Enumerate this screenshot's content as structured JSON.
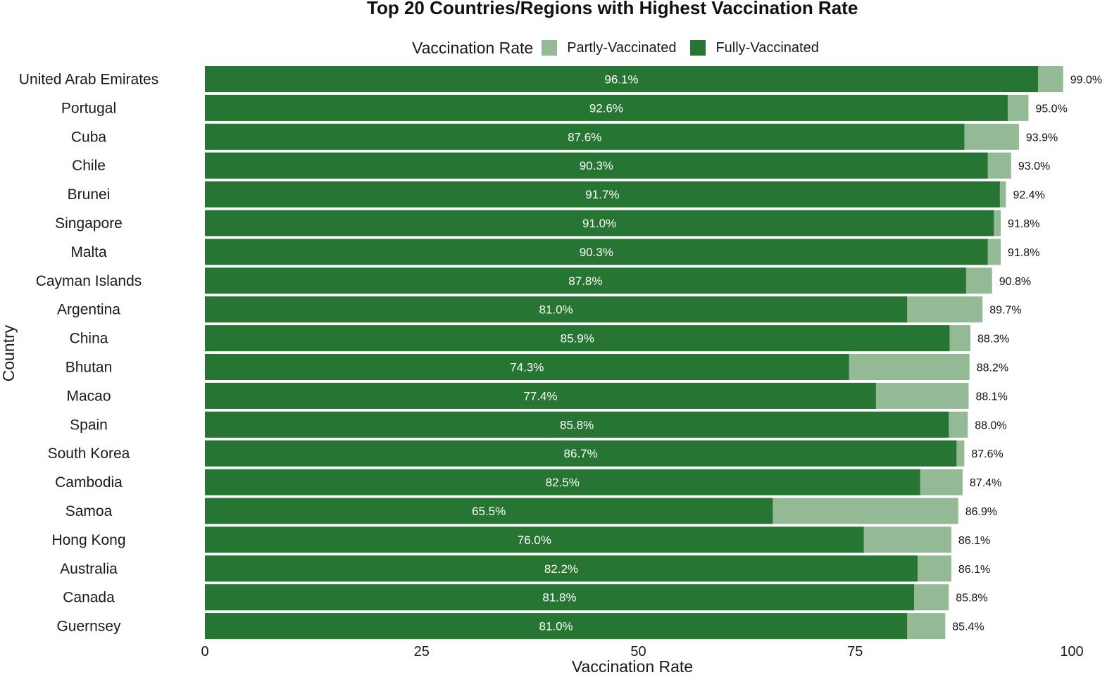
{
  "chart_data": {
    "type": "bar",
    "stacked": true,
    "orientation": "horizontal",
    "title": "Top 20 Countries/Regions with Highest Vaccination Rate",
    "xlabel": "Vaccination Rate",
    "ylabel": "Country",
    "xlim": [
      0,
      100
    ],
    "xticks": [
      "0",
      "25",
      "50",
      "75",
      "100"
    ],
    "legend": {
      "title": "Vaccination Rate",
      "placement": "top",
      "items": [
        {
          "label": "Partly-Vaccinated",
          "color": "#93b995"
        },
        {
          "label": "Fully-Vaccinated",
          "color": "#277532"
        }
      ]
    },
    "categories": [
      "United Arab Emirates",
      "Portugal",
      "Cuba",
      "Chile",
      "Brunei",
      "Singapore",
      "Malta",
      "Cayman Islands",
      "Argentina",
      "China",
      "Bhutan",
      "Macao",
      "Spain",
      "South Korea",
      "Cambodia",
      "Samoa",
      "Hong Kong",
      "Australia",
      "Canada",
      "Guernsey"
    ],
    "series": [
      {
        "name": "Fully-Vaccinated",
        "color": "#277532",
        "values": [
          96.1,
          92.6,
          87.6,
          90.3,
          91.7,
          91.0,
          90.3,
          87.8,
          81.0,
          85.9,
          74.3,
          77.4,
          85.8,
          86.7,
          82.5,
          65.5,
          76.0,
          82.2,
          81.8,
          81.0
        ],
        "labels": [
          "96.1%",
          "92.6%",
          "87.6%",
          "90.3%",
          "91.7%",
          "91.0%",
          "90.3%",
          "87.8%",
          "81.0%",
          "85.9%",
          "74.3%",
          "77.4%",
          "85.8%",
          "86.7%",
          "82.5%",
          "65.5%",
          "76.0%",
          "82.2%",
          "81.8%",
          "81.0%"
        ]
      },
      {
        "name": "Partly-Vaccinated",
        "color": "#93b995",
        "totals": [
          99.0,
          95.0,
          93.9,
          93.0,
          92.4,
          91.8,
          91.8,
          90.8,
          89.7,
          88.3,
          88.2,
          88.1,
          88.0,
          87.6,
          87.4,
          86.9,
          86.1,
          86.1,
          85.8,
          85.4
        ],
        "labels": [
          "99.0%",
          "95.0%",
          "93.9%",
          "93.0%",
          "92.4%",
          "91.8%",
          "91.8%",
          "90.8%",
          "89.7%",
          "88.3%",
          "88.2%",
          "88.1%",
          "88.0%",
          "87.6%",
          "87.4%",
          "86.9%",
          "86.1%",
          "86.1%",
          "85.8%",
          "85.4%"
        ]
      }
    ]
  }
}
